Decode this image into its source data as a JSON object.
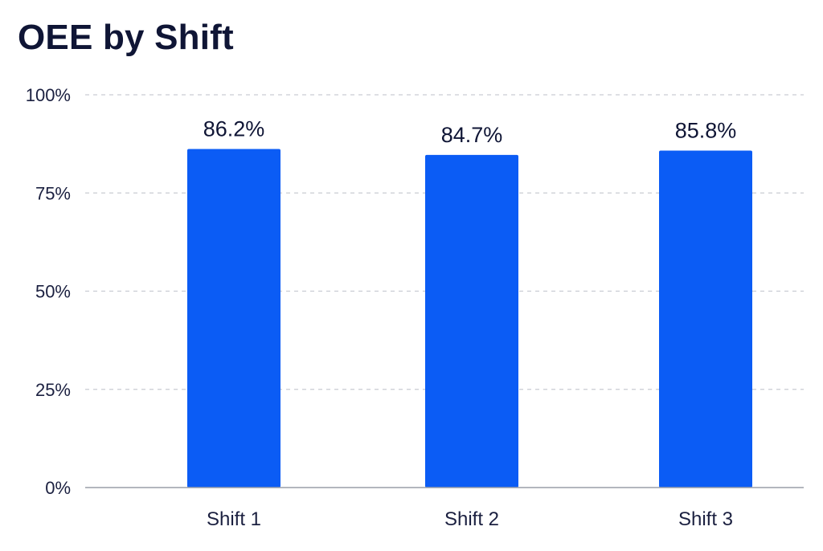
{
  "chart_data": {
    "type": "bar",
    "title": "OEE by Shift",
    "xlabel": "",
    "ylabel": "",
    "categories": [
      "Shift 1",
      "Shift 2",
      "Shift 3"
    ],
    "values": [
      86.2,
      84.7,
      85.8
    ],
    "data_labels": [
      "86.2%",
      "84.7%",
      "85.8%"
    ],
    "ylim": [
      0,
      100
    ],
    "yticks": [
      0,
      25,
      50,
      75,
      100
    ],
    "ytick_labels": [
      "0%",
      "25%",
      "50%",
      "75%",
      "100%"
    ],
    "grid": true,
    "legend": "none",
    "colors": {
      "bar": "#0b5cf5",
      "grid": "#c9ccd3",
      "axis": "#9a9ea8",
      "text": "#0f1535"
    }
  }
}
